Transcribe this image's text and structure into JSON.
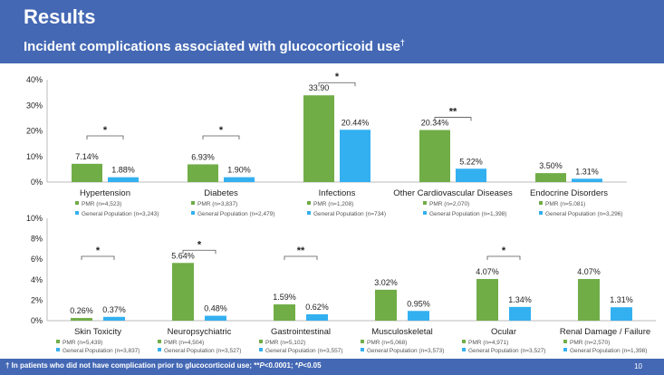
{
  "header": {
    "title": "Results",
    "subtitle": "Incident complications associated with glucocorticoid use",
    "subtitle_mark": "†"
  },
  "footer": {
    "note_prefix": "† In patients who did not have complication prior to glucocorticoid use; **",
    "note_p1": "P",
    "note_mid": "<0.0001; *",
    "note_p2": "P",
    "note_end": "<0.05",
    "page": "10"
  },
  "colors": {
    "pmr": "#70ad47",
    "general": "#33b0f0",
    "header_bg": "#4468b4"
  },
  "chart_data": [
    {
      "type": "bar",
      "ylim": [
        0,
        40
      ],
      "yticks": [
        "0%",
        "10%",
        "20%",
        "30%",
        "40%"
      ],
      "categories": [
        "Hypertension",
        "Diabetes",
        "Infections",
        "Other Cardiovascular Diseases",
        "Endocrine Disorders"
      ],
      "series": [
        {
          "name": "PMR",
          "values": [
            7.14,
            6.93,
            33.9,
            20.34,
            3.5
          ],
          "labels": [
            "7.14%",
            "6.93%",
            "33.90",
            "20.34%",
            "3.50%"
          ]
        },
        {
          "name": "General Population",
          "values": [
            1.88,
            1.9,
            20.44,
            5.22,
            1.31
          ],
          "labels": [
            "1.88%",
            "1.90%",
            "20.44%",
            "5.22%",
            "1.31%"
          ]
        }
      ],
      "legend_pmr": [
        "PMR (n=4,523)",
        "PMR (n=3,837)",
        "PMR (n=1,208)",
        "PMR (n=2,070)",
        "PMR (n=5,081)"
      ],
      "legend_gen": [
        "General Population (n=3,243)",
        "General Population (n=2,479)",
        "General Population (n=734)",
        "General Population (n=1,398)",
        "General Population (n=3,296)"
      ],
      "significance": [
        "*",
        "*",
        "*",
        "**",
        ""
      ]
    },
    {
      "type": "bar",
      "ylim": [
        0,
        10
      ],
      "yticks": [
        "0%",
        "2%",
        "4%",
        "6%",
        "8%",
        "10%"
      ],
      "categories": [
        "Skin Toxicity",
        "Neuropsychiatric",
        "Gastrointestinal",
        "Musculoskeletal",
        "Ocular",
        "Renal Damage / Failure"
      ],
      "series": [
        {
          "name": "PMR",
          "values": [
            0.26,
            5.64,
            1.59,
            3.02,
            4.07,
            4.07
          ],
          "labels": [
            "0.26%",
            "5.64%",
            "1.59%",
            "3.02%",
            "4.07%",
            "4.07%"
          ]
        },
        {
          "name": "General Population",
          "values": [
            0.37,
            0.48,
            0.62,
            0.95,
            1.34,
            1.31
          ],
          "labels": [
            "0.37%",
            "0.48%",
            "0.62%",
            "0.95%",
            "1.34%",
            "1.31%"
          ]
        }
      ],
      "legend_pmr": [
        "PMR (n=5,439)",
        "PMR (n=4,504)",
        "PMR (n=5,102)",
        "PMR (n=5,068)",
        "PMR (n=4,971)",
        "PMR (n=2,570)"
      ],
      "legend_gen": [
        "General Population (n=3,837)",
        "General Population (n=3,527)",
        "General Population (n=3,557)",
        "General Population (n=3,573)",
        "General Population (n=3,527)",
        "General Population (n=1,398)"
      ],
      "significance": [
        "*",
        "*",
        "**",
        "",
        "*",
        ""
      ]
    }
  ]
}
